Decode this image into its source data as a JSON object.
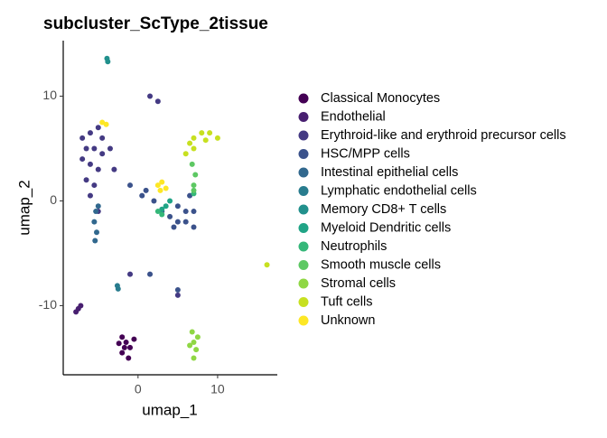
{
  "chart_data": {
    "type": "scatter",
    "title": "subcluster_ScType_2tissue",
    "x_label": "umap_1",
    "y_label": "umap_2",
    "xlim": [
      -9.4,
      17.5
    ],
    "ylim": [
      -16.6,
      15.3
    ],
    "xticks": [
      0,
      10
    ],
    "yticks": [
      -10,
      0,
      10
    ],
    "grid": false,
    "legend": "right",
    "series": [
      {
        "name": "Classical Monocytes",
        "color": "#440154",
        "x": [
          -2,
          -1.5,
          -1,
          -2,
          -1.2,
          -0.5,
          -1.7,
          -2.4
        ],
        "y": [
          -13,
          -13.5,
          -14,
          -14.5,
          -15,
          -13.2,
          -14,
          -13.6
        ]
      },
      {
        "name": "Endothelial",
        "color": "#481F70",
        "x": [
          -7.8,
          -7.5,
          -7.2
        ],
        "y": [
          -10.6,
          -10.3,
          -10
        ]
      },
      {
        "name": "Erythroid-like and erythroid precursor cells",
        "color": "#443A83",
        "x": [
          -7,
          -6,
          -5,
          -4.5,
          -6.5,
          -5.5,
          -4.5,
          -7,
          -6,
          -5,
          -6.5,
          -5.5,
          -6,
          -3.5,
          -3,
          1.5,
          2.5,
          -5,
          -1,
          5
        ],
        "y": [
          6,
          6.5,
          7,
          6,
          5,
          5,
          4.5,
          4,
          3.5,
          3,
          2,
          1.5,
          0.5,
          5,
          3,
          10,
          9.5,
          -1,
          -7,
          -9
        ]
      },
      {
        "name": "HSC/MPP cells",
        "color": "#3B528B",
        "x": [
          1,
          2,
          3,
          4,
          5,
          6,
          7,
          6,
          5,
          7,
          4.5,
          0.5,
          6.5,
          5,
          1.5,
          -1
        ],
        "y": [
          1,
          0,
          -1,
          -1.5,
          -2,
          -2,
          -2.5,
          -1,
          -0.5,
          -1,
          -2.5,
          0.5,
          0.5,
          -8.5,
          -7,
          1.5
        ]
      },
      {
        "name": "Intestinal epithelial cells",
        "color": "#31688E",
        "x": [
          -5.3,
          -5.5,
          -5.2,
          -5.4,
          -5
        ],
        "y": [
          -1,
          -2,
          -3,
          -3.8,
          -0.5
        ]
      },
      {
        "name": "Lymphatic endothelial cells",
        "color": "#287C8E",
        "x": [
          -2.6,
          -2.5
        ],
        "y": [
          -8.1,
          -8.4
        ]
      },
      {
        "name": "Memory CD8+ T cells",
        "color": "#21908C",
        "x": [
          -3.9,
          -3.8
        ],
        "y": [
          13.6,
          13.3
        ]
      },
      {
        "name": "Myeloid Dendritic cells",
        "color": "#20A486",
        "x": [
          3,
          3.5,
          4
        ],
        "y": [
          -0.8,
          -0.5,
          0
        ]
      },
      {
        "name": "Neutrophils",
        "color": "#35B779",
        "x": [
          2.5,
          3,
          7
        ],
        "y": [
          -1,
          -1.3,
          0.7
        ]
      },
      {
        "name": "Smooth muscle cells",
        "color": "#5DC863",
        "x": [
          7,
          7.2,
          6.8,
          7
        ],
        "y": [
          1.5,
          2.5,
          3.5,
          1
        ]
      },
      {
        "name": "Stromal cells",
        "color": "#8FD744",
        "x": [
          6.8,
          7,
          7.3,
          6.5,
          7,
          7.5
        ],
        "y": [
          -12.5,
          -13.5,
          -14.2,
          -13.8,
          -15,
          -13
        ]
      },
      {
        "name": "Tuft cells",
        "color": "#C7E020",
        "x": [
          6.5,
          7,
          8,
          9,
          10,
          8.5,
          6,
          7,
          16.2
        ],
        "y": [
          5.5,
          6,
          6.5,
          6.5,
          6,
          5.8,
          4.5,
          5,
          -6.1
        ]
      },
      {
        "name": "Unknown",
        "color": "#FDE725",
        "x": [
          2.5,
          3,
          3.5,
          2.8,
          -4.5,
          -4
        ],
        "y": [
          1.5,
          1.8,
          1.2,
          1,
          7.5,
          7.3
        ]
      }
    ]
  }
}
